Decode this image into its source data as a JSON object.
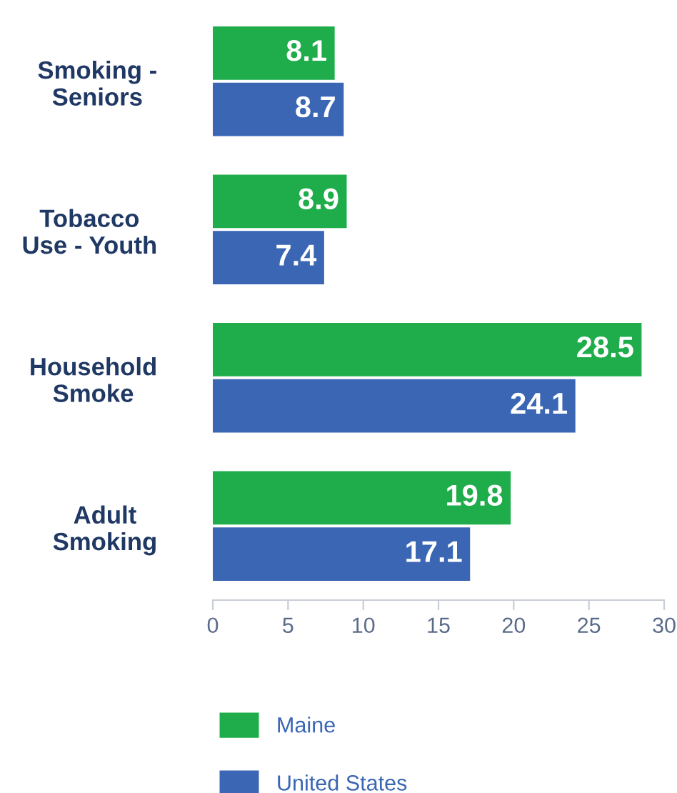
{
  "chart_data": {
    "type": "bar",
    "orientation": "horizontal",
    "categories": [
      "Smoking -\nSeniors",
      "Tobacco\nUse - Youth",
      "Household\nSmoke",
      "Adult\nSmoking"
    ],
    "series": [
      {
        "name": "Maine",
        "color": "#1fad4b",
        "values": [
          8.1,
          8.9,
          28.5,
          19.8
        ]
      },
      {
        "name": "United States",
        "color": "#3a66b4",
        "values": [
          8.7,
          7.4,
          24.1,
          17.1
        ]
      }
    ],
    "xlim": [
      0,
      30
    ],
    "xticks": [
      0,
      5,
      10,
      15,
      20,
      25,
      30
    ],
    "data_labels": true,
    "grid": false,
    "legend": "bottom"
  }
}
